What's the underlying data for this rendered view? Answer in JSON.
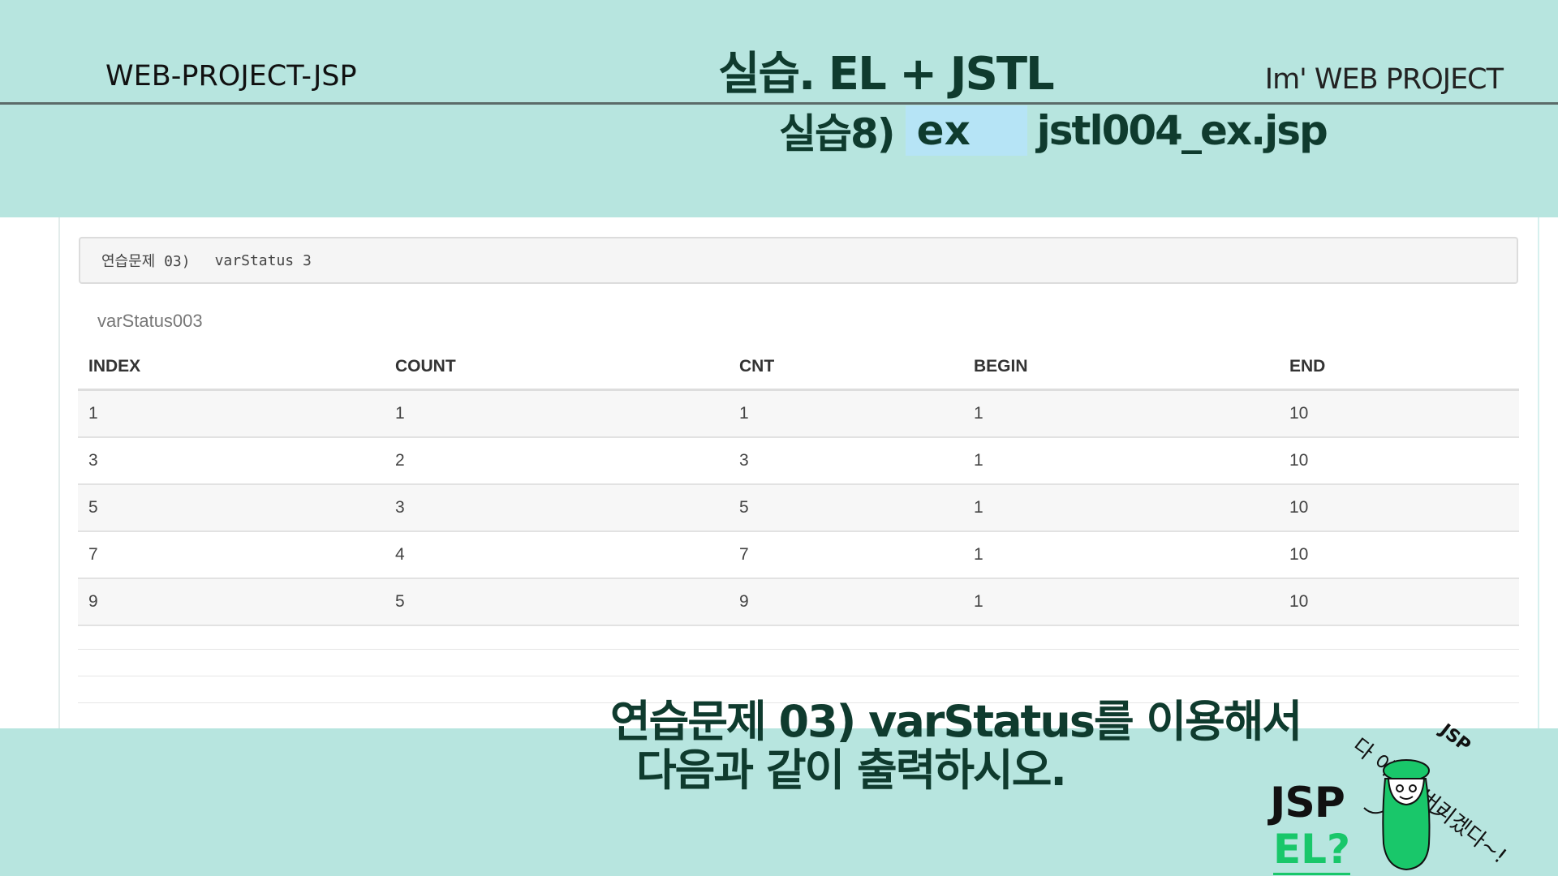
{
  "header": {
    "brand_left": "WEB-PROJECT-JSP",
    "title": "실습. EL + JSTL",
    "brand_right": "Im'  WEB PROJECT"
  },
  "subtitle": {
    "label": "실습8)",
    "chip": "ex",
    "file": "jstl004_ex.jsp"
  },
  "panel": {
    "heading": "연습문제 03)",
    "heading_detail": "varStatus 3"
  },
  "table": {
    "caption": "varStatus003",
    "columns": [
      "INDEX",
      "COUNT",
      "CNT",
      "BEGIN",
      "END"
    ],
    "rows": [
      [
        "1",
        "1",
        "1",
        "1",
        "10"
      ],
      [
        "3",
        "2",
        "3",
        "1",
        "10"
      ],
      [
        "5",
        "3",
        "5",
        "1",
        "10"
      ],
      [
        "7",
        "4",
        "7",
        "1",
        "10"
      ],
      [
        "9",
        "5",
        "9",
        "1",
        "10"
      ]
    ]
  },
  "caption": {
    "line1": "연습문제 03) varStatus를 이용해서",
    "line2": "다음과 같이 출력하시오."
  },
  "mascot": {
    "jsp": "JSP",
    "el": "EL?",
    "speech": "다 이해해버리겠다~!",
    "tag": "JSP",
    "body_color": "#19c76a"
  }
}
